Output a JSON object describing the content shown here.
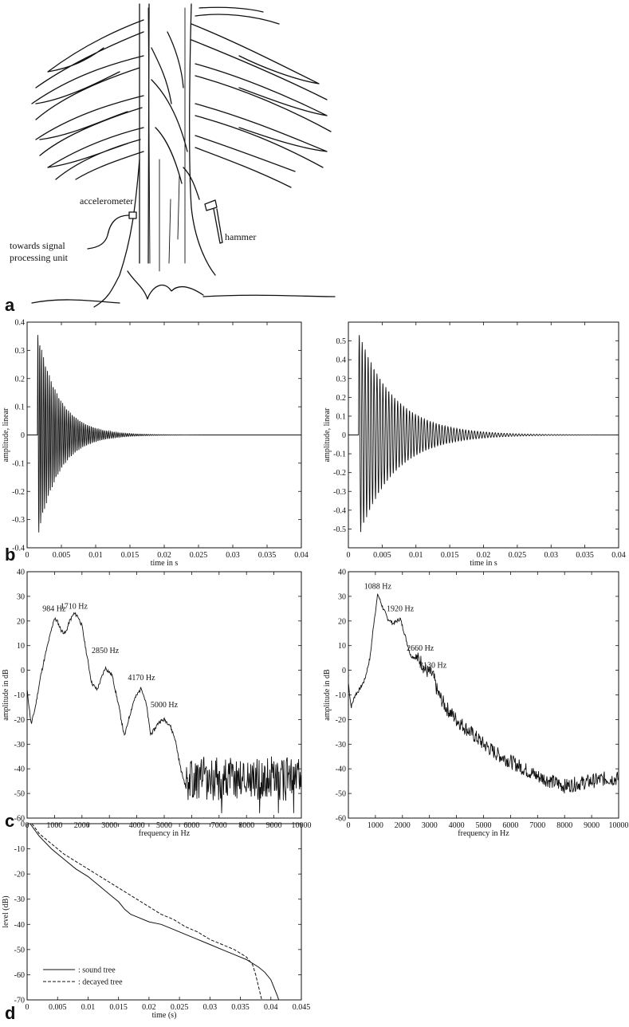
{
  "figure": {
    "panel_labels": [
      "a",
      "b",
      "c",
      "d"
    ],
    "illustration": {
      "labels": {
        "accelerometer": "accelerometer",
        "hammer": "hammer",
        "signal_line1": "towards signal",
        "signal_line2": "processing unit"
      }
    }
  },
  "chart_data": [
    {
      "id": "b-left",
      "type": "line",
      "title": "",
      "xlabel": "time in s",
      "ylabel": "amplitude, linear",
      "xlim": [
        0,
        0.04
      ],
      "ylim": [
        -0.4,
        0.4
      ],
      "xticks": [
        "0",
        "0.005",
        "0.01",
        "0.015",
        "0.02",
        "0.025",
        "0.03",
        "0.035",
        "0.04"
      ],
      "yticks": [
        "-0.4",
        "-0.3",
        "-0.2",
        "-0.1",
        "0",
        "0.1",
        "0.2",
        "0.3",
        "0.4"
      ],
      "signal": {
        "start": 0.0015,
        "amplitude": 0.37,
        "frequency": 1710,
        "decay": 320
      },
      "series": [
        {
          "values_description": "decaying oscillation",
          "peak_max": 0.36,
          "peak_min": -0.38
        }
      ]
    },
    {
      "id": "b-right",
      "type": "line",
      "title": "",
      "xlabel": "time in s",
      "ylabel": "amplitude, linear",
      "xlim": [
        0,
        0.04
      ],
      "ylim": [
        -0.6,
        0.6
      ],
      "xticks": [
        "0",
        "0.005",
        "0.01",
        "0.015",
        "0.02",
        "0.025",
        "0.03",
        "0.035",
        "0.04"
      ],
      "yticks": [
        "-0.5",
        "-0.4",
        "-0.3",
        "-0.2",
        "-0.1",
        "0",
        "0.1",
        "0.2",
        "0.3",
        "0.4",
        "0.5"
      ],
      "signal": {
        "start": 0.0015,
        "amplitude": 0.55,
        "frequency": 1088,
        "decay": 190
      },
      "series": [
        {
          "values_description": "decaying oscillation",
          "peak_max": 0.48,
          "peak_min": -0.57
        }
      ]
    },
    {
      "id": "c-left",
      "type": "line",
      "title": "",
      "xlabel": "frequency in Hz",
      "ylabel": "amplitude in dB",
      "xlim": [
        0,
        10000
      ],
      "ylim": [
        -60,
        40
      ],
      "xticks": [
        "0",
        "1000",
        "2000",
        "3000",
        "4000",
        "5000",
        "6000",
        "7000",
        "8000",
        "9000",
        "10000"
      ],
      "yticks": [
        "-60",
        "-50",
        "-40",
        "-30",
        "-20",
        "-10",
        "0",
        "10",
        "20",
        "30",
        "40"
      ],
      "annotations": [
        {
          "text": "984 Hz",
          "x": 984,
          "y": 24
        },
        {
          "text": "1710 Hz",
          "x": 1710,
          "y": 25
        },
        {
          "text": "2850 Hz",
          "x": 2850,
          "y": 7
        },
        {
          "text": "4170 Hz",
          "x": 4170,
          "y": -4
        },
        {
          "text": "5000 Hz",
          "x": 5000,
          "y": -15
        }
      ],
      "x": [
        0,
        150,
        300,
        500,
        700,
        900,
        984,
        1100,
        1250,
        1400,
        1550,
        1710,
        1850,
        2000,
        2150,
        2350,
        2550,
        2850,
        3100,
        3350,
        3550,
        3700,
        3900,
        4170,
        4350,
        4500,
        4650,
        4800,
        5000,
        5200,
        5400,
        5600,
        5800
      ],
      "y": [
        -8,
        -22,
        -15,
        -2,
        8,
        17,
        21,
        20,
        16,
        15,
        20,
        23,
        22,
        18,
        8,
        -5,
        -8,
        1,
        -2,
        -15,
        -27,
        -20,
        -12,
        -7,
        -14,
        -26,
        -24,
        -21,
        -20,
        -22,
        -28,
        -40,
        -48
      ],
      "noise": {
        "from": 5800,
        "to": 10000,
        "mean": -44,
        "spread": 9,
        "seed": 11
      }
    },
    {
      "id": "c-right",
      "type": "line",
      "title": "",
      "xlabel": "frequency in Hz",
      "ylabel": "amplitude in dB",
      "xlim": [
        0,
        10000
      ],
      "ylim": [
        -60,
        40
      ],
      "xticks": [
        "0",
        "1000",
        "2000",
        "3000",
        "4000",
        "5000",
        "6000",
        "7000",
        "8000",
        "9000",
        "10000"
      ],
      "yticks": [
        "-60",
        "-50",
        "-40",
        "-30",
        "-20",
        "-10",
        "0",
        "10",
        "20",
        "30",
        "40"
      ],
      "annotations": [
        {
          "text": "1088 Hz",
          "x": 1088,
          "y": 33
        },
        {
          "text": "1920 Hz",
          "x": 1920,
          "y": 24
        },
        {
          "text": "2660 Hz",
          "x": 2660,
          "y": 8
        },
        {
          "text": "3130 Hz",
          "x": 3130,
          "y": 1
        }
      ],
      "x": [
        0,
        100,
        250,
        400,
        600,
        800,
        950,
        1088,
        1250,
        1450,
        1650,
        1800,
        1920,
        2100,
        2300,
        2500,
        2660,
        2850,
        3000,
        3130,
        3300,
        3600,
        4000,
        4500,
        5000,
        5500,
        6000,
        6500,
        7000,
        7500,
        8000,
        8500,
        9000,
        9500,
        10000
      ],
      "y": [
        -5,
        -15,
        -10,
        -8,
        -4,
        5,
        20,
        31,
        26,
        21,
        19,
        20,
        21,
        14,
        6,
        5,
        4,
        0,
        -1,
        -2,
        -9,
        -15,
        -20,
        -25,
        -30,
        -34,
        -37,
        -40,
        -43,
        -45,
        -47,
        -46,
        -45,
        -44,
        -44
      ],
      "noise": {
        "from": 2500,
        "to": 10000,
        "mean": 0,
        "spread": 3,
        "seed": 7
      }
    },
    {
      "id": "d",
      "type": "line",
      "title": "",
      "xlabel": "time (s)",
      "ylabel": "level (dB)",
      "xlim": [
        0,
        0.045
      ],
      "ylim": [
        -70,
        0
      ],
      "xticks": [
        "0",
        "0.005",
        "0.01",
        "0.015",
        "0.02",
        "0.025",
        "0.03",
        "0.035",
        "0.04",
        "0.045"
      ],
      "yticks": [
        "-70",
        "-60",
        "-50",
        "-40",
        "-30",
        "-20",
        "-10",
        "0"
      ],
      "series": [
        {
          "name": ": sound tree",
          "style": "solid",
          "x": [
            0.0005,
            0.002,
            0.004,
            0.006,
            0.008,
            0.01,
            0.012,
            0.014,
            0.015,
            0.016,
            0.017,
            0.018,
            0.02,
            0.022,
            0.024,
            0.026,
            0.028,
            0.03,
            0.032,
            0.034,
            0.036,
            0.038,
            0.039,
            0.04,
            0.0405,
            0.041,
            0.0413
          ],
          "y": [
            0,
            -5,
            -10,
            -14,
            -18,
            -21,
            -25,
            -29,
            -31,
            -34,
            -36,
            -37,
            -39,
            -40,
            -42,
            -44,
            -46,
            -48,
            -50,
            -52,
            -54,
            -57,
            -59,
            -62,
            -65,
            -68,
            -70
          ]
        },
        {
          "name": ": decayed tree",
          "style": "dashed",
          "x": [
            0.0008,
            0.002,
            0.004,
            0.006,
            0.008,
            0.01,
            0.012,
            0.014,
            0.016,
            0.018,
            0.02,
            0.022,
            0.024,
            0.026,
            0.028,
            0.03,
            0.032,
            0.034,
            0.036,
            0.037,
            0.0375,
            0.038,
            0.0385
          ],
          "y": [
            0,
            -4,
            -8,
            -12,
            -15,
            -18,
            -21,
            -24,
            -27,
            -30,
            -33,
            -36,
            -38,
            -41,
            -43,
            -46,
            -48,
            -50,
            -53,
            -56,
            -60,
            -65,
            -70
          ]
        }
      ]
    }
  ]
}
